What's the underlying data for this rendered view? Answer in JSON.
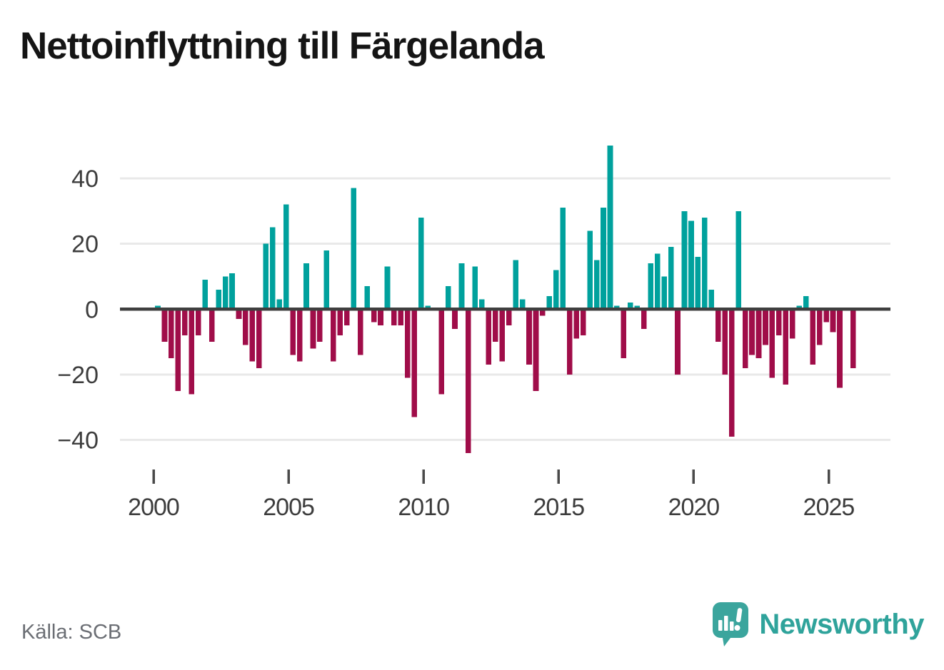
{
  "title": "Nettoinflyttning till Färgelanda",
  "source_label": "Källa: SCB",
  "branding": {
    "wordmark": "Newsworthy",
    "logo_icon": "speech-bubble-bar-chart"
  },
  "colors": {
    "positive_bar": "#00a19d",
    "negative_bar": "#a00d49",
    "axis_text": "#3d3d3d",
    "grid_line": "#e9e9e9",
    "zero_line": "#3f3f3f",
    "tick_mark": "#4a4a4a",
    "title_text": "#151515",
    "source_text": "#6b6e74",
    "brand_teal": "#2fa39b"
  },
  "chart_data": {
    "type": "bar",
    "title": "Nettoinflyttning till Färgelanda",
    "frequency": "quarterly",
    "start": "2000 Q1",
    "end": "2025 Q4",
    "values": [
      1,
      -10,
      -15,
      -25,
      -8,
      -26,
      -8,
      9,
      -10,
      6,
      10,
      11,
      -3,
      -11,
      -16,
      -18,
      20,
      25,
      3,
      32,
      -14,
      -16,
      14,
      -12,
      -10,
      18,
      -16,
      -8,
      -5,
      37,
      -14,
      7,
      -4,
      -5,
      13,
      -5,
      -5,
      -21,
      -33,
      28,
      1,
      0,
      -26,
      7,
      -6,
      14,
      -44,
      13,
      3,
      -17,
      -10,
      -16,
      -5,
      15,
      3,
      -17,
      -25,
      -2,
      4,
      12,
      31,
      -20,
      -9,
      -8,
      24,
      15,
      31,
      50,
      1,
      -15,
      2,
      1,
      -6,
      14,
      17,
      10,
      19,
      -20,
      30,
      27,
      16,
      28,
      6,
      -10,
      -20,
      -39,
      30,
      -18,
      -14,
      -15,
      -11,
      -21,
      -8,
      -23,
      -9,
      1,
      4,
      -17,
      -11,
      -4,
      -7,
      -24,
      0,
      -18
    ],
    "ytick_values": [
      40,
      20,
      0,
      -20,
      -40
    ],
    "ytick_labels": [
      "40",
      "20",
      "0",
      "−20",
      "−40"
    ],
    "xtick_years": [
      2000,
      2005,
      2010,
      2015,
      2020,
      2025
    ],
    "xtick_labels": [
      "2000",
      "2005",
      "2010",
      "2015",
      "2020",
      "2025"
    ],
    "ylim": [
      -47,
      52
    ],
    "grid": "horizontal",
    "legend": "none",
    "positive_color": "#00a19d",
    "negative_color": "#a00d49"
  }
}
